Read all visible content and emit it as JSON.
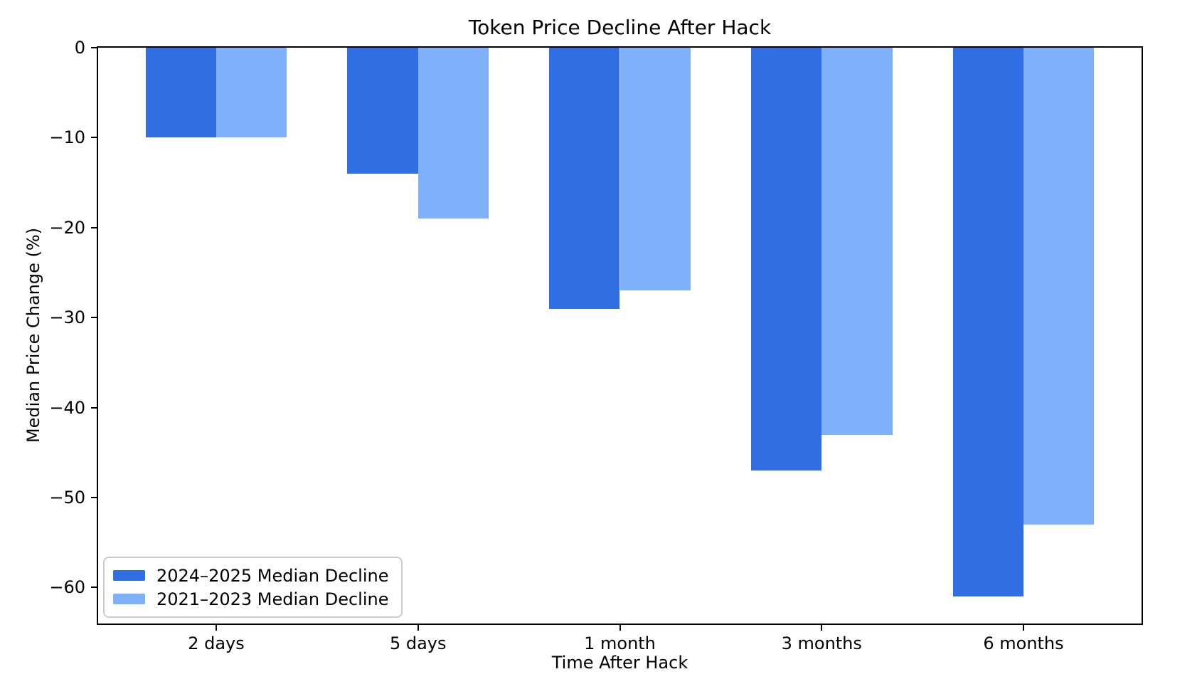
{
  "chart_data": {
    "type": "bar",
    "title": "Token Price Decline After Hack",
    "xlabel": "Time After Hack",
    "ylabel": "Median Price Change (%)",
    "categories": [
      "2 days",
      "5 days",
      "1 month",
      "3 months",
      "6 months"
    ],
    "series": [
      {
        "name": "2024–2025 Median Decline",
        "color": "#2f6fe3",
        "values": [
          -10,
          -14,
          -29,
          -47,
          -61
        ]
      },
      {
        "name": "2021–2023 Median Decline",
        "color": "#7fb0fa",
        "values": [
          -10,
          -19,
          -27,
          -43,
          -53
        ]
      }
    ],
    "ylim": [
      -64,
      0
    ],
    "xlim": [
      -0.585,
      4.585
    ],
    "bar_width": 0.35,
    "yticks": [
      0,
      -10,
      -20,
      -30,
      -40,
      -50,
      -60
    ],
    "ytick_labels": [
      "0",
      "−10",
      "−20",
      "−30",
      "−40",
      "−50",
      "−60"
    ],
    "grid": false,
    "legend_position": "lower left",
    "axis_color": "#000000",
    "background_color": "#ffffff"
  }
}
